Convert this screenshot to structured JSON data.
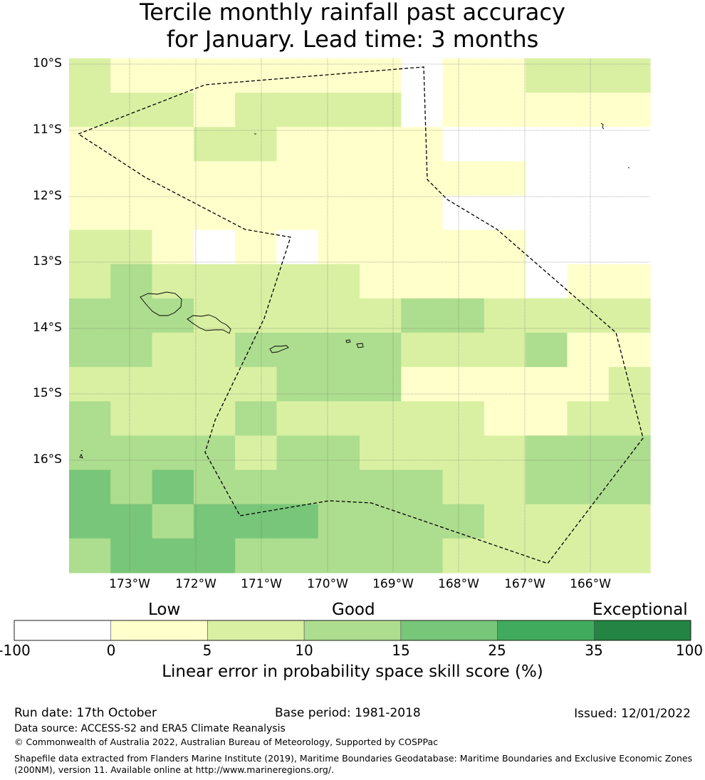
{
  "title": {
    "line1": "Tercile monthly rainfall past accuracy",
    "line2": "for January. Lead time: 3 months"
  },
  "map": {
    "lat_labels": [
      "10°S",
      "11°S",
      "12°S",
      "13°S",
      "14°S",
      "15°S",
      "16°S"
    ],
    "lon_labels": [
      "173°W",
      "172°W",
      "171°W",
      "170°W",
      "169°W",
      "168°W",
      "167°W",
      "166°W"
    ],
    "grid_rows": [
      [
        2,
        1,
        1,
        1,
        1,
        1,
        1,
        1,
        0,
        1,
        1,
        2,
        2,
        2
      ],
      [
        2,
        2,
        2,
        1,
        2,
        2,
        2,
        2,
        0,
        1,
        1,
        1,
        1,
        1
      ],
      [
        1,
        1,
        1,
        2,
        2,
        1,
        1,
        1,
        1,
        0,
        0,
        0,
        0,
        0
      ],
      [
        1,
        1,
        1,
        1,
        1,
        1,
        1,
        1,
        1,
        1,
        1,
        0,
        0,
        0
      ],
      [
        1,
        1,
        1,
        1,
        1,
        1,
        1,
        1,
        1,
        0,
        0,
        0,
        0,
        0
      ],
      [
        2,
        2,
        1,
        0,
        1,
        0,
        1,
        1,
        1,
        1,
        1,
        0,
        0,
        0
      ],
      [
        2,
        3,
        2,
        2,
        2,
        2,
        2,
        1,
        1,
        1,
        1,
        0,
        1,
        1
      ],
      [
        3,
        3,
        3,
        2,
        2,
        2,
        2,
        2,
        3,
        3,
        2,
        2,
        2,
        2
      ],
      [
        3,
        3,
        2,
        2,
        3,
        3,
        3,
        3,
        2,
        2,
        2,
        3,
        1,
        1
      ],
      [
        2,
        2,
        2,
        2,
        2,
        3,
        3,
        3,
        1,
        1,
        1,
        1,
        1,
        2
      ],
      [
        3,
        2,
        2,
        2,
        3,
        2,
        2,
        2,
        2,
        2,
        1,
        1,
        2,
        2
      ],
      [
        3,
        3,
        3,
        3,
        2,
        3,
        3,
        2,
        2,
        2,
        2,
        3,
        3,
        3
      ],
      [
        4,
        3,
        4,
        3,
        3,
        3,
        3,
        3,
        3,
        2,
        2,
        3,
        3,
        3
      ],
      [
        4,
        4,
        3,
        4,
        4,
        4,
        3,
        3,
        3,
        3,
        2,
        2,
        2,
        2
      ],
      [
        3,
        4,
        4,
        4,
        3,
        3,
        3,
        3,
        3,
        2,
        2,
        2,
        2,
        2
      ]
    ],
    "zone_label": "Maritime boundary (EEZ)",
    "islands": "Samoa islands"
  },
  "colorbar": {
    "categories": [
      "Low",
      "Good",
      "Exceptional"
    ],
    "ticks": [
      "-100",
      "0",
      "5",
      "10",
      "15",
      "25",
      "35",
      "100"
    ],
    "colors": [
      "#ffffff",
      "#ffffcc",
      "#d9f0a3",
      "#addd8e",
      "#78c679",
      "#41ab5d",
      "#238443"
    ],
    "label": "Linear error in probability space skill score (%)"
  },
  "footer": {
    "run_date": "Run date: 17th October",
    "base_period": "Base period: 1981-2018",
    "issued": "Issued: 12/01/2022",
    "data_source": "Data source: ACCESS-S2 and ERA5 Climate Reanalysis",
    "copyright": "© Commonwealth of Australia 2022, Australian Bureau of Meteorology, Supported by COSPPac",
    "shapefile_1": "Shapefile data extracted from Flanders Marine Institute (2019), Maritime Boundaries Geodatabase: Maritime Boundaries and Exclusive Economic Zones",
    "shapefile_2": "(200NM), version 11. Available online at http://www.marineregions.org/."
  }
}
